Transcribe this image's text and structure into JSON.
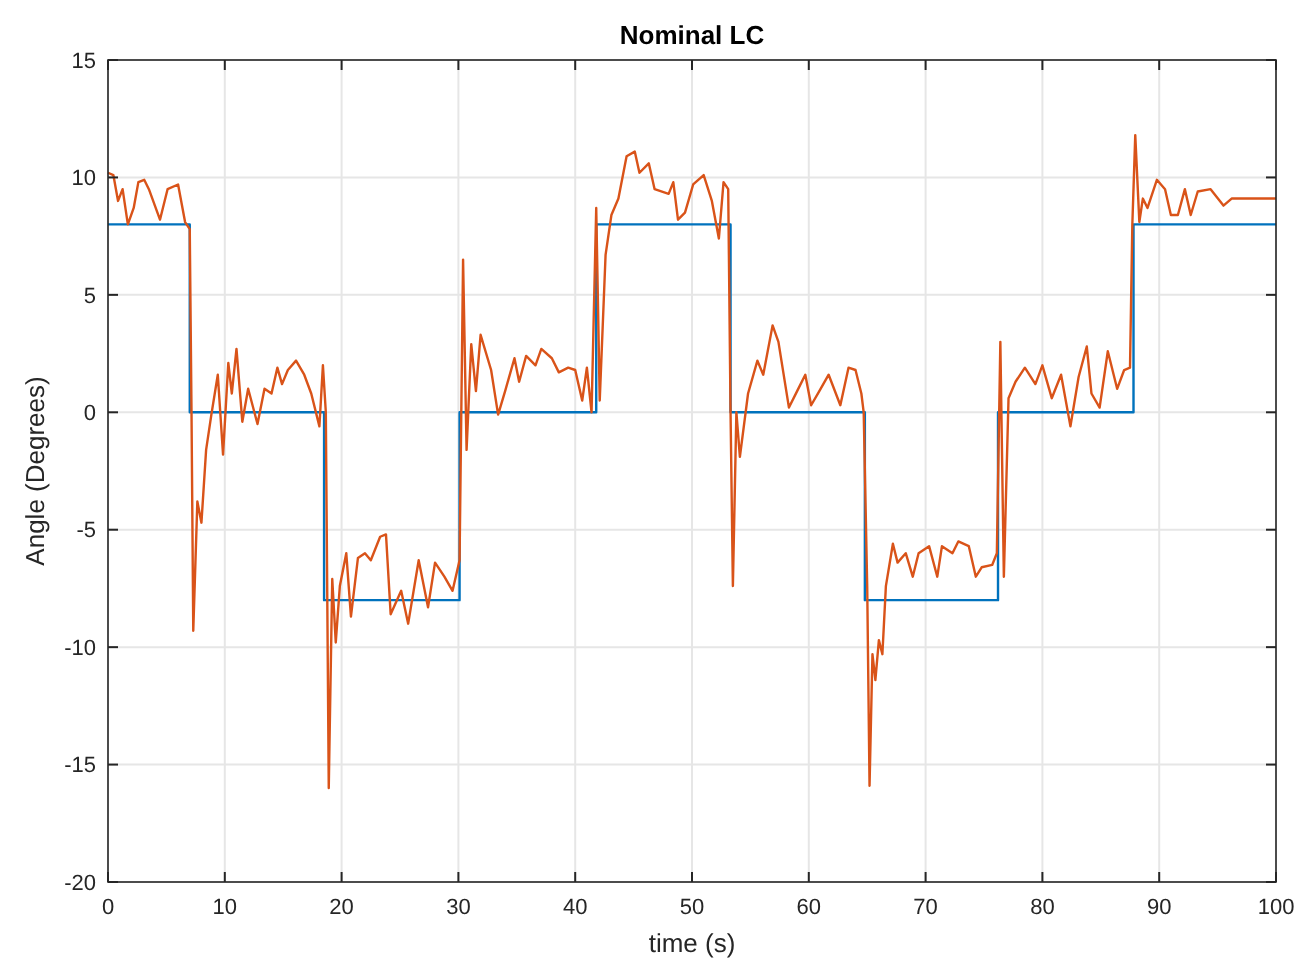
{
  "chart_data": {
    "type": "line",
    "title": "Nominal LC",
    "xlabel": "time (s)",
    "ylabel": "Angle (Degrees)",
    "xlim": [
      0,
      100
    ],
    "ylim": [
      -20,
      15
    ],
    "xticks": [
      0,
      10,
      20,
      30,
      40,
      50,
      60,
      70,
      80,
      90,
      100
    ],
    "yticks": [
      -20,
      -15,
      -10,
      -5,
      0,
      5,
      10,
      15
    ],
    "grid": true,
    "line_style": "solid",
    "marker": "none",
    "series": [
      {
        "color": "#0072bd",
        "x": [
          0,
          7,
          7,
          18.5,
          18.5,
          30.1,
          30.1,
          41.8,
          41.8,
          53.3,
          53.3,
          64.8,
          64.8,
          76.2,
          76.2,
          87.8,
          87.8,
          100
        ],
        "values": [
          8,
          8,
          0,
          0,
          -8,
          -8,
          0,
          0,
          8,
          8,
          0,
          0,
          -8,
          -8,
          0,
          0,
          8,
          8
        ]
      },
      {
        "color": "#d95319",
        "x": [
          0,
          0.46,
          0.86,
          1.25,
          1.7,
          2.2,
          2.6,
          3.1,
          3.5,
          4.45,
          5.1,
          6.0,
          6.6,
          7.0,
          7.15,
          7.3,
          7.65,
          8.0,
          8.4,
          8.85,
          9.4,
          9.85,
          10.3,
          10.6,
          11.0,
          11.5,
          12.0,
          12.8,
          13.4,
          14.0,
          14.5,
          14.9,
          15.4,
          16.1,
          16.8,
          17.4,
          18.1,
          18.4,
          18.65,
          18.9,
          19.2,
          19.5,
          19.85,
          20.4,
          20.8,
          21.4,
          22.0,
          22.5,
          23.3,
          23.8,
          24.2,
          25.1,
          25.7,
          26.6,
          27.4,
          28.0,
          28.8,
          29.5,
          30.1,
          30.4,
          30.7,
          31.1,
          31.5,
          31.9,
          32.8,
          33.4,
          34.0,
          34.8,
          35.2,
          35.8,
          36.6,
          37.1,
          38.0,
          38.6,
          39.4,
          40.0,
          40.6,
          41.0,
          41.4,
          41.8,
          42.1,
          42.6,
          43.1,
          43.7,
          44.4,
          45.1,
          45.5,
          46.3,
          46.8,
          48.0,
          48.4,
          48.8,
          49.4,
          50.1,
          51.0,
          51.7,
          52.3,
          52.7,
          53.1,
          53.3,
          53.5,
          53.8,
          54.1,
          54.8,
          55.6,
          56.1,
          56.9,
          57.4,
          58.3,
          59.0,
          59.7,
          60.2,
          60.9,
          61.7,
          62.7,
          63.4,
          64.0,
          64.5,
          64.7,
          65.0,
          65.2,
          65.45,
          65.7,
          66.0,
          66.3,
          66.6,
          67.2,
          67.6,
          68.3,
          68.9,
          69.4,
          70.3,
          71.0,
          71.4,
          72.3,
          72.8,
          73.7,
          74.3,
          74.8,
          75.7,
          76.1,
          76.4,
          76.7,
          77.1,
          77.7,
          78.5,
          79.4,
          80.0,
          80.8,
          81.6,
          82.4,
          83.1,
          83.8,
          84.2,
          84.9,
          85.6,
          86.4,
          87.0,
          87.5,
          87.7,
          87.95,
          88.3,
          88.6,
          89.0,
          89.8,
          90.5,
          91.0,
          91.6,
          92.2,
          92.7,
          93.3,
          94.4,
          95.5,
          96.2,
          100
        ],
        "values": [
          10.2,
          10.1,
          9.0,
          9.5,
          8.0,
          8.7,
          9.8,
          9.9,
          9.5,
          8.2,
          9.5,
          9.7,
          8.1,
          7.8,
          0,
          -9.3,
          -3.8,
          -4.7,
          -1.6,
          -0.1,
          1.6,
          -1.8,
          2.1,
          0.8,
          2.7,
          -0.4,
          1.0,
          -0.5,
          1.0,
          0.8,
          1.9,
          1.2,
          1.8,
          2.2,
          1.6,
          0.8,
          -0.6,
          2.0,
          0,
          -16.0,
          -7.1,
          -9.8,
          -7.4,
          -6.0,
          -8.7,
          -6.2,
          -6.0,
          -6.3,
          -5.3,
          -5.2,
          -8.6,
          -7.6,
          -9.0,
          -6.3,
          -8.3,
          -6.4,
          -7.0,
          -7.6,
          -6.3,
          6.5,
          -1.6,
          2.9,
          0.9,
          3.3,
          1.8,
          -0.1,
          0.9,
          2.3,
          1.3,
          2.4,
          2.0,
          2.7,
          2.3,
          1.7,
          1.9,
          1.8,
          0.5,
          1.9,
          0,
          8.7,
          0.5,
          6.7,
          8.4,
          9.1,
          10.9,
          11.1,
          10.2,
          10.6,
          9.5,
          9.3,
          9.8,
          8.2,
          8.5,
          9.7,
          10.1,
          9.0,
          7.4,
          9.8,
          9.5,
          0,
          -7.4,
          0,
          -1.9,
          0.8,
          2.2,
          1.6,
          3.7,
          3.0,
          0.2,
          0.9,
          1.6,
          0.3,
          0.9,
          1.6,
          0.3,
          1.9,
          1.8,
          0.8,
          0,
          -7.4,
          -15.9,
          -10.3,
          -11.4,
          -9.7,
          -10.3,
          -7.4,
          -5.6,
          -6.4,
          -6.0,
          -7.0,
          -6.0,
          -5.7,
          -7.0,
          -5.7,
          -6.0,
          -5.5,
          -5.7,
          -7.0,
          -6.6,
          -6.5,
          -6.0,
          3.0,
          -7.0,
          0.6,
          1.3,
          1.9,
          1.2,
          2.0,
          0.6,
          1.6,
          -0.6,
          1.5,
          2.8,
          0.8,
          0.2,
          2.6,
          1.0,
          1.8,
          1.9,
          8.0,
          11.8,
          8.1,
          9.1,
          8.7,
          9.9,
          9.5,
          8.4,
          8.4,
          9.5,
          8.4,
          9.4,
          9.5,
          8.8,
          9.1,
          9.1
        ]
      }
    ]
  }
}
